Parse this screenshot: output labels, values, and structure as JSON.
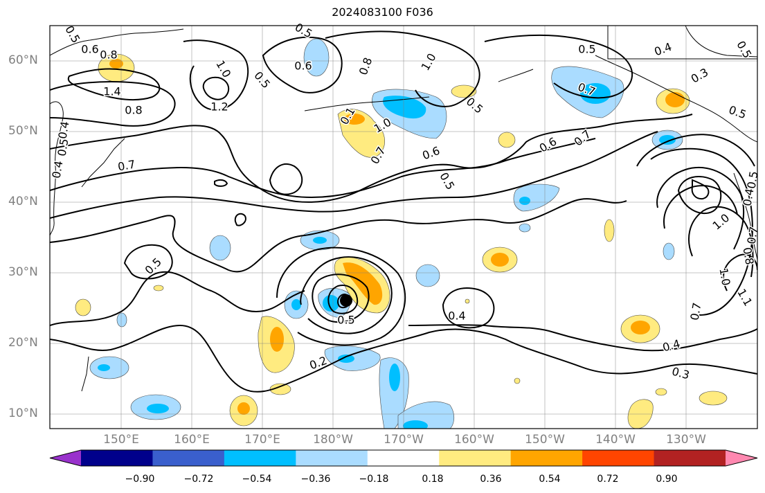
{
  "title": "2024083100 F036",
  "latitude_labels": [
    "60°N",
    "50°N",
    "40°N",
    "30°N",
    "20°N",
    "10°N"
  ],
  "longitude_labels": [
    "150°E",
    "160°E",
    "170°E",
    "180°W",
    "170°W",
    "160°W",
    "150°W",
    "140°W",
    "130°W"
  ],
  "colorbar": {
    "ticks": [
      "−0.90",
      "−0.72",
      "−0.54",
      "−0.36",
      "−0.18",
      "0.18",
      "0.36",
      "0.54",
      "0.72",
      "0.90"
    ],
    "colors": [
      "#9932cc",
      "#00008b",
      "#3a5fcd",
      "#00bfff",
      "#aadcff",
      "#ffffff",
      "#ffeb80",
      "#ffa500",
      "#ff4500",
      "#b22222",
      "#ff88b0"
    ]
  },
  "contour_labels": [
    "0.5",
    "0.6",
    "0.8",
    "0.5",
    "1.4",
    "0.8",
    "1.0",
    "0.5",
    "1.2",
    "0.6",
    "0.8",
    "1.0",
    "0.5",
    "0.7",
    "1.0",
    "0.1",
    "0.7",
    "0.6",
    "0.5",
    "0.5",
    "0.4",
    "0.3",
    "0.5",
    "0.7",
    "0.6",
    "0.7",
    "0.5",
    "0.4",
    "0.5",
    "0.5",
    "0.2",
    "0.4",
    "0.4",
    "0.3",
    "0.7",
    "1.0",
    "1.0",
    "0.8",
    "1.1",
    "0.4",
    "0.5",
    "0.4",
    "0.5",
    "0.7"
  ]
}
